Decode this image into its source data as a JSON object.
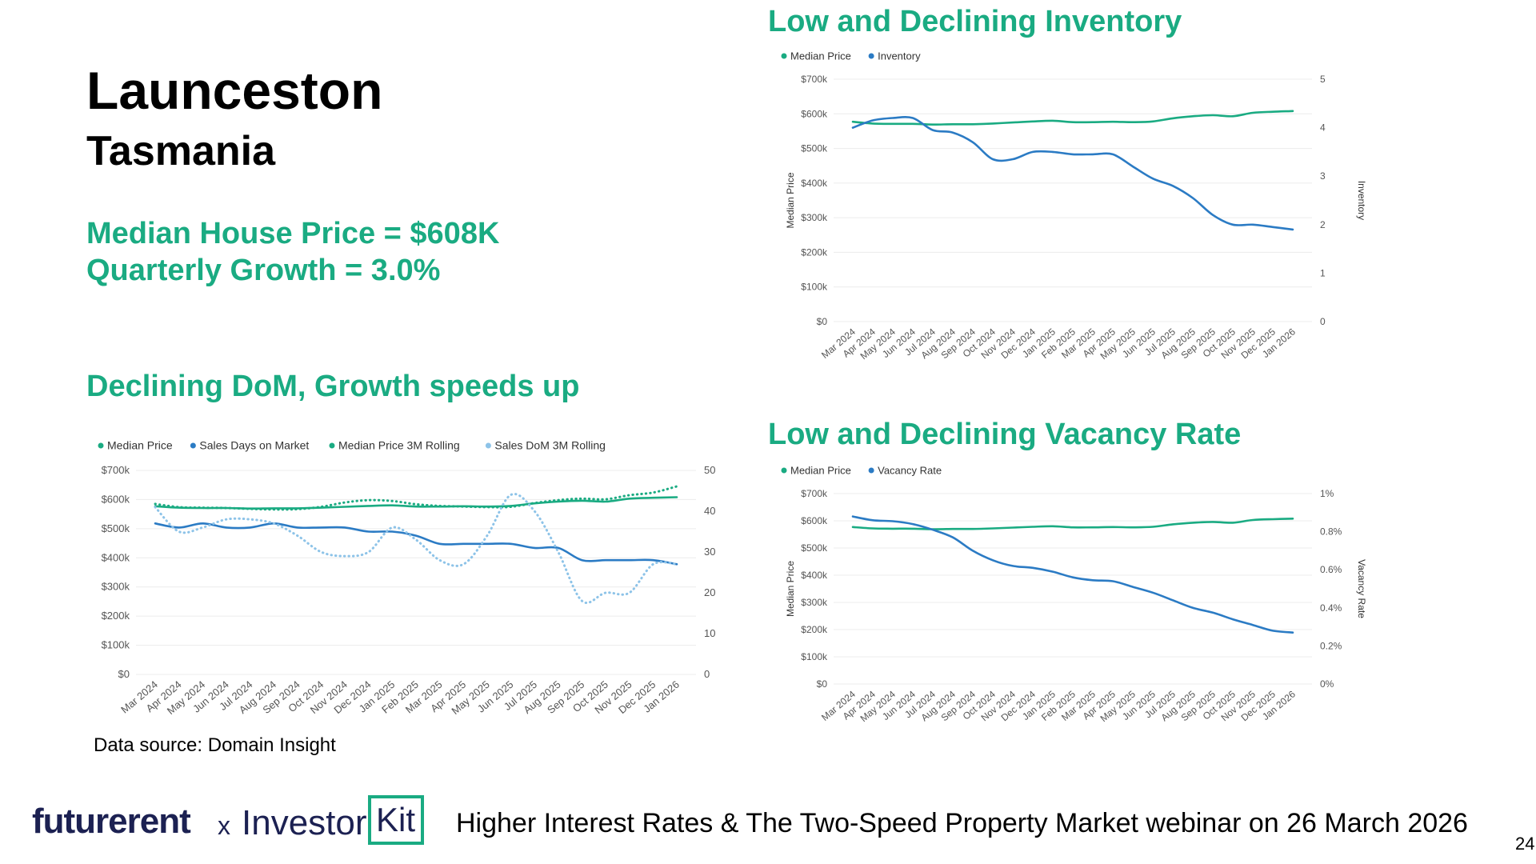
{
  "header": {
    "city": "Launceston",
    "state": "Tasmania",
    "median_house_price": "Median House Price = $608K",
    "quarterly_growth": "Quarterly Growth = 3.0%"
  },
  "sections": {
    "dom_title": "Declining DoM, Growth speeds up",
    "inventory_title": "Low and Declining Inventory",
    "vacancy_title": "Low and Declining Vacancy Rate"
  },
  "data_source": "Data source: Domain Insight",
  "footer": {
    "logo_futurerent": "futurerent",
    "logo_x": "x",
    "logo_investor": "Investor",
    "logo_kit": "Kit",
    "text": "Higher Interest Rates & The Two-Speed Property Market webinar on 26 March 2026",
    "page_number": "24"
  },
  "colors": {
    "green": "#1aab82",
    "blue": "#2b7bc4",
    "light_blue": "#8dc3e8",
    "grid": "#ececec",
    "tick": "#555555"
  },
  "chart_data": [
    {
      "id": "dom",
      "type": "line",
      "categories": [
        "Mar 2024",
        "Apr 2024",
        "May 2024",
        "Jun 2024",
        "Jul 2024",
        "Aug 2024",
        "Sep 2024",
        "Oct 2024",
        "Nov 2024",
        "Dec 2024",
        "Jan 2025",
        "Feb 2025",
        "Mar 2025",
        "Apr 2025",
        "May 2025",
        "Jun 2025",
        "Jul 2025",
        "Aug 2025",
        "Sep 2025",
        "Oct 2025",
        "Nov 2025",
        "Dec 2025",
        "Jan 2026"
      ],
      "left_axis": {
        "label": "",
        "ylim": [
          0,
          700000
        ],
        "ticks": [
          "$0",
          "$100k",
          "$200k",
          "$300k",
          "$400k",
          "$500k",
          "$600k",
          "$700k"
        ]
      },
      "right_axis": {
        "label": "",
        "ylim": [
          0,
          50
        ],
        "ticks": [
          "0",
          "10",
          "20",
          "30",
          "40",
          "50"
        ]
      },
      "series": [
        {
          "name": "Median Price",
          "axis": "left",
          "style": "solid",
          "color": "green",
          "values": [
            577000,
            572000,
            571000,
            571000,
            569000,
            570000,
            570000,
            572000,
            575000,
            578000,
            580000,
            576000,
            576000,
            577000,
            576000,
            578000,
            587000,
            593000,
            596000,
            593000,
            603000,
            606000,
            608000
          ]
        },
        {
          "name": "Sales Days on Market",
          "axis": "right",
          "style": "solid",
          "color": "blue",
          "values": [
            37,
            36,
            37,
            36,
            36,
            37,
            36,
            36,
            36,
            35,
            35,
            34,
            32,
            32,
            32,
            32,
            31,
            31,
            28,
            28,
            28,
            28,
            27
          ]
        },
        {
          "name": "Median Price 3M Rolling",
          "axis": "left",
          "style": "dotted",
          "color": "green",
          "values": [
            585000,
            574000,
            572000,
            571000,
            568000,
            566000,
            567000,
            575000,
            590000,
            598000,
            595000,
            584000,
            578000,
            576000,
            574000,
            575000,
            588000,
            598000,
            603000,
            601000,
            615000,
            624000,
            645000
          ]
        },
        {
          "name": "Sales DoM 3M Rolling",
          "axis": "right",
          "style": "dotted",
          "color": "light_blue",
          "values": [
            41,
            35,
            36,
            38,
            38,
            37,
            34,
            30,
            29,
            30,
            36,
            33,
            28,
            27,
            34,
            44,
            40,
            30,
            18,
            20,
            20,
            27,
            27
          ]
        }
      ]
    },
    {
      "id": "inventory",
      "type": "line",
      "categories": [
        "Mar 2024",
        "Apr 2024",
        "May 2024",
        "Jun 2024",
        "Jul 2024",
        "Aug 2024",
        "Sep 2024",
        "Oct 2024",
        "Nov 2024",
        "Dec 2024",
        "Jan 2025",
        "Feb 2025",
        "Mar 2025",
        "Apr 2025",
        "May 2025",
        "Jun 2025",
        "Jul 2025",
        "Aug 2025",
        "Sep 2025",
        "Oct 2025",
        "Nov 2025",
        "Dec 2025",
        "Jan 2026"
      ],
      "left_axis": {
        "label": "Median Price",
        "ylim": [
          0,
          700000
        ],
        "ticks": [
          "$0",
          "$100k",
          "$200k",
          "$300k",
          "$400k",
          "$500k",
          "$600k",
          "$700k"
        ]
      },
      "right_axis": {
        "label": "Inventory",
        "ylim": [
          0,
          5
        ],
        "ticks": [
          "0",
          "1",
          "2",
          "3",
          "4",
          "5"
        ]
      },
      "series": [
        {
          "name": "Median Price",
          "axis": "left",
          "style": "solid",
          "color": "green",
          "values": [
            577000,
            572000,
            571000,
            571000,
            569000,
            570000,
            570000,
            572000,
            575000,
            578000,
            580000,
            576000,
            576000,
            577000,
            576000,
            578000,
            587000,
            593000,
            596000,
            593000,
            603000,
            606000,
            608000
          ]
        },
        {
          "name": "Inventory",
          "axis": "right",
          "style": "solid",
          "color": "blue",
          "values": [
            4.0,
            4.15,
            4.2,
            4.2,
            3.95,
            3.9,
            3.7,
            3.35,
            3.35,
            3.5,
            3.5,
            3.45,
            3.45,
            3.45,
            3.2,
            2.95,
            2.8,
            2.55,
            2.2,
            2.0,
            2.0,
            1.95,
            1.9
          ]
        }
      ]
    },
    {
      "id": "vacancy",
      "type": "line",
      "categories": [
        "Mar 2024",
        "Apr 2024",
        "May 2024",
        "Jun 2024",
        "Jul 2024",
        "Aug 2024",
        "Sep 2024",
        "Oct 2024",
        "Nov 2024",
        "Dec 2024",
        "Jan 2025",
        "Feb 2025",
        "Mar 2025",
        "Apr 2025",
        "May 2025",
        "Jun 2025",
        "Jul 2025",
        "Aug 2025",
        "Sep 2025",
        "Oct 2025",
        "Nov 2025",
        "Dec 2025",
        "Jan 2026"
      ],
      "left_axis": {
        "label": "Median Price",
        "ylim": [
          0,
          700000
        ],
        "ticks": [
          "$0",
          "$100k",
          "$200k",
          "$300k",
          "$400k",
          "$500k",
          "$600k",
          "$700k"
        ]
      },
      "right_axis": {
        "label": "Vacancy Rate",
        "ylim": [
          0,
          1
        ],
        "ticks": [
          "0%",
          "0.2%",
          "0.4%",
          "0.6%",
          "0.8%",
          "1%"
        ]
      },
      "series": [
        {
          "name": "Median Price",
          "axis": "left",
          "style": "solid",
          "color": "green",
          "values": [
            577000,
            572000,
            571000,
            571000,
            569000,
            570000,
            570000,
            572000,
            575000,
            578000,
            580000,
            576000,
            576000,
            577000,
            576000,
            578000,
            587000,
            593000,
            596000,
            593000,
            603000,
            606000,
            608000
          ]
        },
        {
          "name": "Vacancy Rate",
          "axis": "right",
          "style": "solid",
          "color": "blue",
          "values": [
            0.88,
            0.86,
            0.855,
            0.84,
            0.81,
            0.77,
            0.7,
            0.65,
            0.62,
            0.61,
            0.59,
            0.56,
            0.545,
            0.54,
            0.51,
            0.48,
            0.44,
            0.4,
            0.375,
            0.34,
            0.31,
            0.28,
            0.27
          ]
        }
      ]
    }
  ]
}
